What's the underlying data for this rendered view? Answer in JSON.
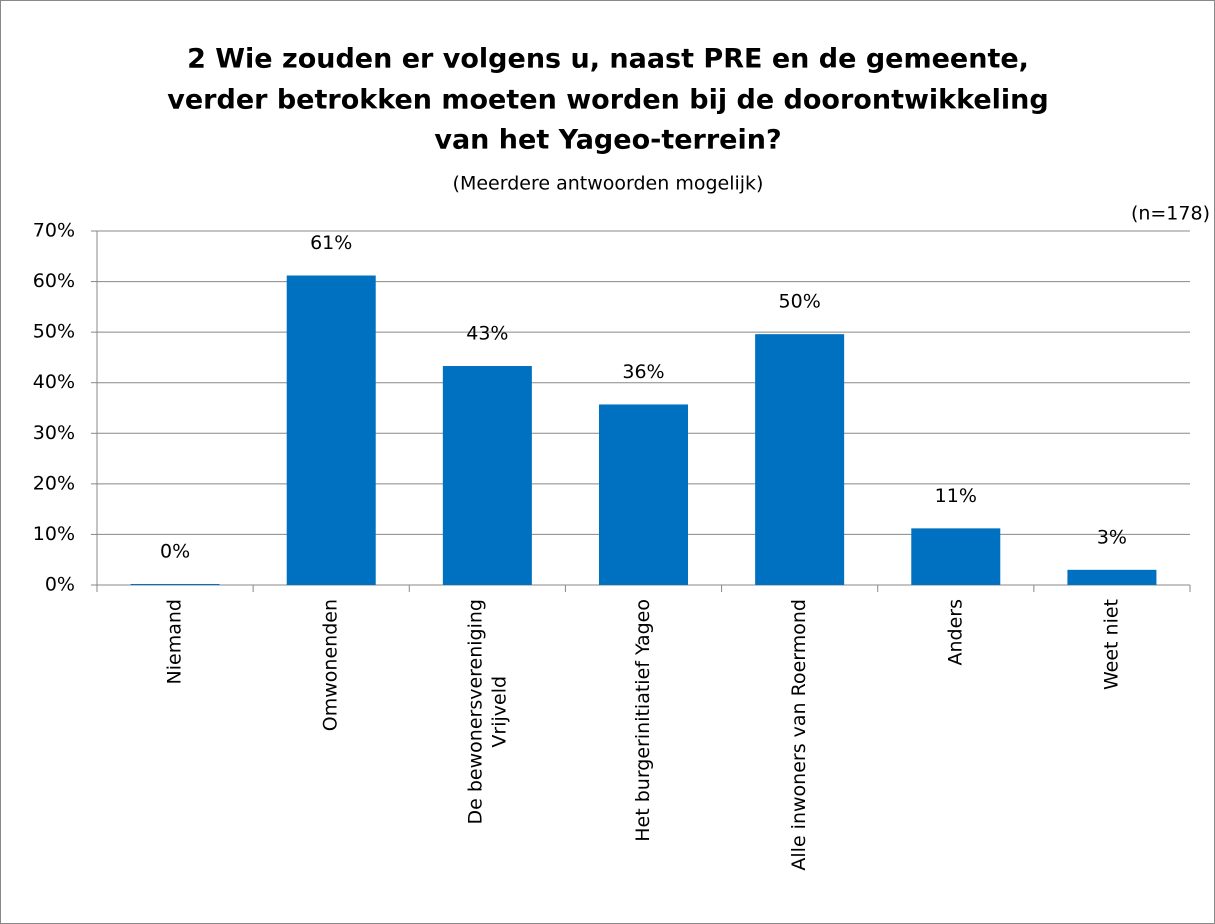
{
  "chart_data": {
    "type": "bar",
    "title": [
      "2 Wie zouden er volgens u, naast PRE en de gemeente,",
      "verder betrokken moeten worden bij de doorontwikkeling",
      "van het Yageo-terrein?"
    ],
    "subtitle": "(Meerdere antwoorden mogelijk)",
    "annotation": "(n=178)",
    "categories": [
      "Niemand",
      "Omwonenden",
      "De bewonersvereniging Vrijveld",
      "Het burgerinitiatief Yageo",
      "Alle inwoners van Roermond",
      "Anders",
      "Weet niet"
    ],
    "values": [
      0.2,
      61.2,
      43.3,
      35.7,
      49.6,
      11.2,
      3.0
    ],
    "value_labels": [
      "0%",
      "61%",
      "43%",
      "36%",
      "50%",
      "11%",
      "3%"
    ],
    "color": "#0070c0",
    "ylim": [
      0,
      70
    ],
    "yticks": [
      {
        "value": 0,
        "label": "0%"
      },
      {
        "value": 10,
        "label": "10%"
      },
      {
        "value": 20,
        "label": "20%"
      },
      {
        "value": 30,
        "label": "30%"
      },
      {
        "value": 40,
        "label": "40%"
      },
      {
        "value": 50,
        "label": "50%"
      },
      {
        "value": 60,
        "label": "60%"
      },
      {
        "value": 70,
        "label": "70%"
      }
    ],
    "grid": true
  }
}
